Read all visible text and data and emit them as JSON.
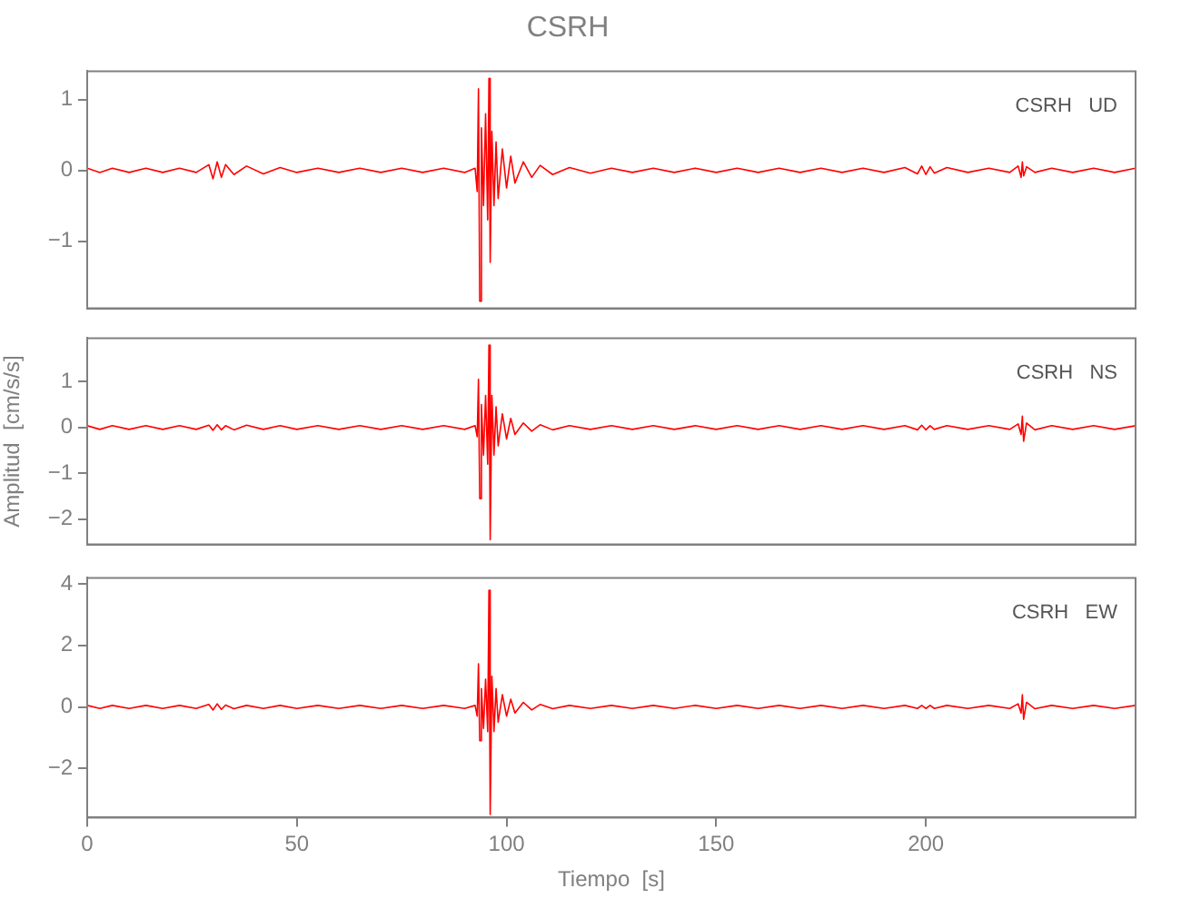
{
  "chart_data": [
    {
      "type": "line",
      "title": "CSRH",
      "annotations": [
        "CSRH   UD"
      ],
      "xlim": [
        0,
        250
      ],
      "xticks": [
        0,
        50,
        100,
        150,
        200
      ],
      "ylim": [
        -1.95,
        1.4
      ],
      "yticks": [
        -1,
        0,
        1
      ],
      "tick_labels": "y",
      "grid": false,
      "legend": false,
      "marker": "none",
      "line_style": "solid",
      "x": [
        0,
        3,
        6,
        10,
        14,
        18,
        22,
        26,
        29,
        30,
        31,
        32,
        33,
        35,
        38,
        42,
        46,
        50,
        55,
        60,
        65,
        70,
        75,
        80,
        85,
        90,
        92.5,
        93,
        93.3,
        93.6,
        94,
        94.5,
        95,
        95.5,
        95.8,
        96.1,
        96.5,
        97,
        97.5,
        98,
        99,
        100,
        101,
        102,
        104,
        106,
        108,
        111,
        115,
        120,
        125,
        130,
        135,
        140,
        145,
        150,
        155,
        160,
        165,
        170,
        175,
        180,
        185,
        190,
        195,
        198,
        199,
        200,
        201,
        202,
        205,
        210,
        215,
        220,
        222,
        222.7,
        223,
        223.3,
        224,
        226,
        230,
        235,
        240,
        245,
        250
      ],
      "series": [
        {
          "color": "#ff0000",
          "values": [
            0.03,
            -0.03,
            0.03,
            -0.03,
            0.03,
            -0.03,
            0.03,
            -0.03,
            0.08,
            -0.12,
            0.12,
            -0.1,
            0.08,
            -0.06,
            0.06,
            -0.05,
            0.04,
            -0.03,
            0.03,
            -0.03,
            0.03,
            -0.03,
            0.03,
            -0.03,
            0.03,
            -0.03,
            0.03,
            -0.3,
            1.15,
            -1.85,
            0.6,
            -0.5,
            0.8,
            -0.7,
            1.3,
            -1.3,
            0.55,
            -0.5,
            0.4,
            -0.4,
            0.3,
            -0.25,
            0.2,
            -0.18,
            0.12,
            -0.1,
            0.07,
            -0.06,
            0.04,
            -0.04,
            0.03,
            -0.03,
            0.03,
            -0.03,
            0.03,
            -0.03,
            0.03,
            -0.03,
            0.03,
            -0.03,
            0.03,
            -0.03,
            0.03,
            -0.03,
            0.04,
            -0.05,
            0.06,
            -0.06,
            0.05,
            -0.04,
            0.04,
            -0.03,
            0.03,
            -0.03,
            0.06,
            -0.1,
            0.12,
            -0.08,
            0.05,
            -0.03,
            0.03,
            -0.03,
            0.03,
            -0.03,
            0.03
          ]
        }
      ]
    },
    {
      "type": "line",
      "ylabel": "Amplitud  [cm/s/s]",
      "annotations": [
        "CSRH   NS"
      ],
      "xlim": [
        0,
        250
      ],
      "xticks": [
        0,
        50,
        100,
        150,
        200
      ],
      "ylim": [
        -2.55,
        1.95
      ],
      "yticks": [
        -2,
        -1,
        0,
        1
      ],
      "tick_labels": "y",
      "grid": false,
      "legend": false,
      "marker": "none",
      "line_style": "solid",
      "x": [
        0,
        3,
        6,
        10,
        14,
        18,
        22,
        26,
        29,
        30,
        31,
        32,
        33,
        35,
        38,
        42,
        46,
        50,
        55,
        60,
        65,
        70,
        75,
        80,
        85,
        90,
        92.5,
        93,
        93.3,
        93.6,
        94,
        94.5,
        95,
        95.5,
        95.8,
        96.1,
        96.5,
        97,
        97.5,
        98,
        99,
        100,
        101,
        102,
        104,
        106,
        108,
        111,
        115,
        120,
        125,
        130,
        135,
        140,
        145,
        150,
        155,
        160,
        165,
        170,
        175,
        180,
        185,
        190,
        195,
        198,
        199,
        200,
        201,
        202,
        205,
        210,
        215,
        220,
        222,
        222.7,
        223,
        223.3,
        224,
        226,
        230,
        235,
        240,
        245,
        250
      ],
      "series": [
        {
          "color": "#ff0000",
          "values": [
            0.04,
            -0.04,
            0.04,
            -0.04,
            0.04,
            -0.04,
            0.04,
            -0.04,
            0.05,
            -0.06,
            0.06,
            -0.05,
            0.04,
            -0.05,
            0.05,
            -0.04,
            0.04,
            -0.04,
            0.04,
            -0.04,
            0.04,
            -0.04,
            0.04,
            -0.04,
            0.04,
            -0.04,
            0.04,
            -0.2,
            1.05,
            -1.55,
            0.5,
            -0.6,
            0.7,
            -0.8,
            1.8,
            -2.45,
            0.7,
            -0.6,
            0.45,
            -0.4,
            0.3,
            -0.25,
            0.2,
            -0.15,
            0.1,
            -0.08,
            0.06,
            -0.05,
            0.04,
            -0.04,
            0.04,
            -0.04,
            0.04,
            -0.04,
            0.04,
            -0.04,
            0.04,
            -0.04,
            0.04,
            -0.04,
            0.04,
            -0.04,
            0.04,
            -0.04,
            0.04,
            -0.05,
            0.05,
            -0.05,
            0.04,
            -0.04,
            0.04,
            -0.04,
            0.04,
            -0.04,
            0.08,
            -0.15,
            0.25,
            -0.3,
            0.1,
            -0.05,
            0.04,
            -0.04,
            0.04,
            -0.04,
            0.04
          ]
        }
      ]
    },
    {
      "type": "line",
      "xlabel": "Tiempo  [s]",
      "annotations": [
        "CSRH   EW"
      ],
      "xlim": [
        0,
        250
      ],
      "xticks": [
        0,
        50,
        100,
        150,
        200
      ],
      "ylim": [
        -3.6,
        4.2
      ],
      "yticks": [
        -2,
        0,
        2,
        4
      ],
      "grid": false,
      "legend": false,
      "marker": "none",
      "line_style": "solid",
      "x": [
        0,
        3,
        6,
        10,
        14,
        18,
        22,
        26,
        29,
        30,
        31,
        32,
        33,
        35,
        38,
        42,
        46,
        50,
        55,
        60,
        65,
        70,
        75,
        80,
        85,
        90,
        92.5,
        93,
        93.3,
        93.6,
        94,
        94.5,
        95,
        95.5,
        95.8,
        96.1,
        96.5,
        97,
        97.5,
        98,
        99,
        100,
        101,
        102,
        104,
        106,
        108,
        111,
        115,
        120,
        125,
        130,
        135,
        140,
        145,
        150,
        155,
        160,
        165,
        170,
        175,
        180,
        185,
        190,
        195,
        198,
        199,
        200,
        201,
        202,
        205,
        210,
        215,
        220,
        222,
        222.7,
        223,
        223.3,
        224,
        226,
        230,
        235,
        240,
        245,
        250
      ],
      "series": [
        {
          "color": "#ff0000",
          "values": [
            0.05,
            -0.05,
            0.05,
            -0.05,
            0.05,
            -0.05,
            0.05,
            -0.05,
            0.08,
            -0.1,
            0.1,
            -0.08,
            0.06,
            -0.06,
            0.05,
            -0.05,
            0.05,
            -0.05,
            0.05,
            -0.05,
            0.05,
            -0.05,
            0.05,
            -0.05,
            0.05,
            -0.05,
            0.05,
            -0.3,
            1.4,
            -1.1,
            0.6,
            -0.7,
            0.9,
            -0.8,
            3.8,
            -3.5,
            1.0,
            -0.8,
            0.6,
            -0.5,
            0.4,
            -0.3,
            0.25,
            -0.2,
            0.15,
            -0.1,
            0.08,
            -0.06,
            0.05,
            -0.05,
            0.05,
            -0.05,
            0.05,
            -0.05,
            0.05,
            -0.05,
            0.05,
            -0.05,
            0.05,
            -0.05,
            0.05,
            -0.05,
            0.05,
            -0.05,
            0.05,
            -0.05,
            0.05,
            -0.05,
            0.05,
            -0.05,
            0.05,
            -0.05,
            0.05,
            -0.05,
            0.1,
            -0.2,
            0.4,
            -0.4,
            0.15,
            -0.06,
            0.05,
            -0.05,
            0.05,
            -0.05,
            0.05
          ]
        }
      ]
    }
  ]
}
